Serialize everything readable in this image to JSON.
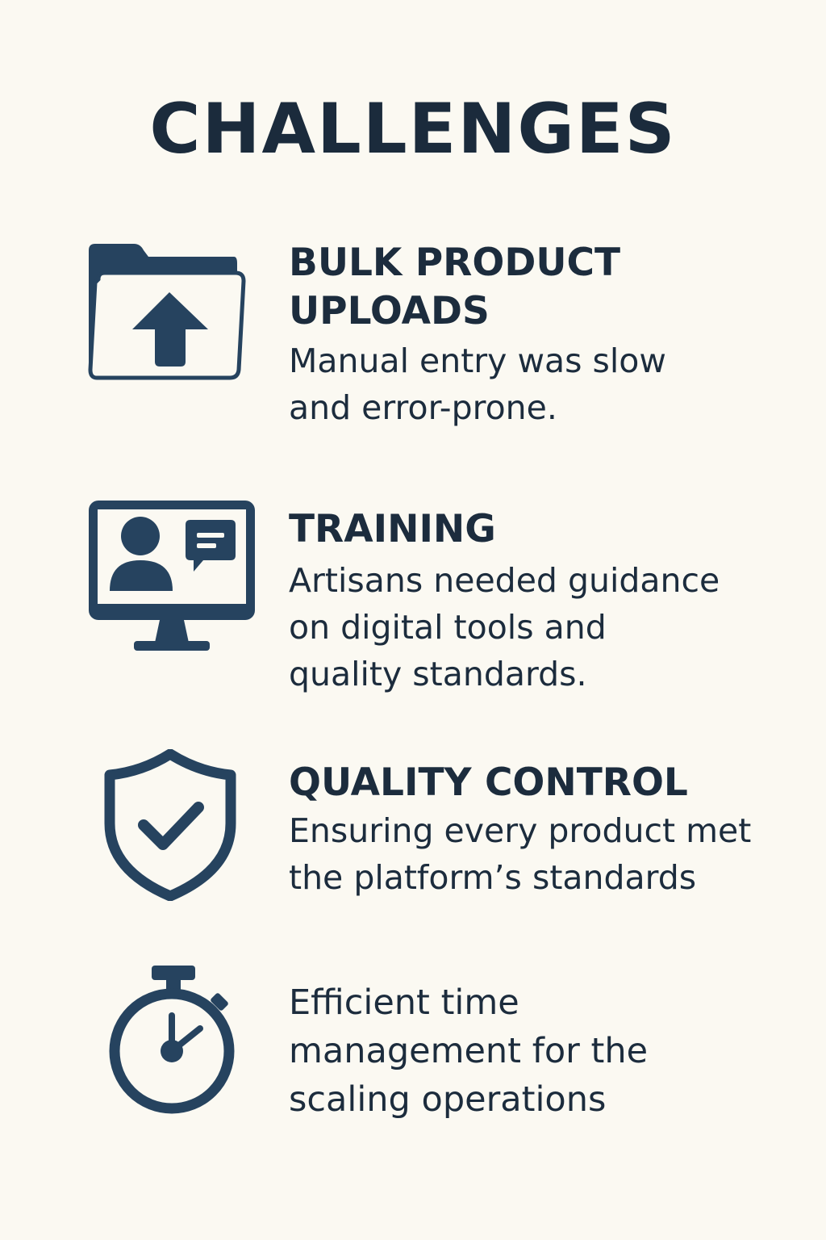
{
  "title": "CHALLENGES",
  "colors": {
    "background": "#fbf9f2",
    "text": "#1b2b3c",
    "icon": "#26435f"
  },
  "items": [
    {
      "icon": "folder-upload-icon",
      "heading": "BULK PRODUCT\nUPLOADS",
      "description": "Manual entry was slow\nand error-prone."
    },
    {
      "icon": "monitor-training-icon",
      "heading": "TRAINING",
      "description": "Artisans needed guidance\non digital tools and\nquality standards."
    },
    {
      "icon": "shield-check-icon",
      "heading": "QUALITY CONTROL",
      "description": "Ensuring every product met\nthe platform’s standards"
    },
    {
      "icon": "stopwatch-icon",
      "heading": "",
      "description": "Efficient time\nmanagement for the\nscaling operations"
    }
  ]
}
